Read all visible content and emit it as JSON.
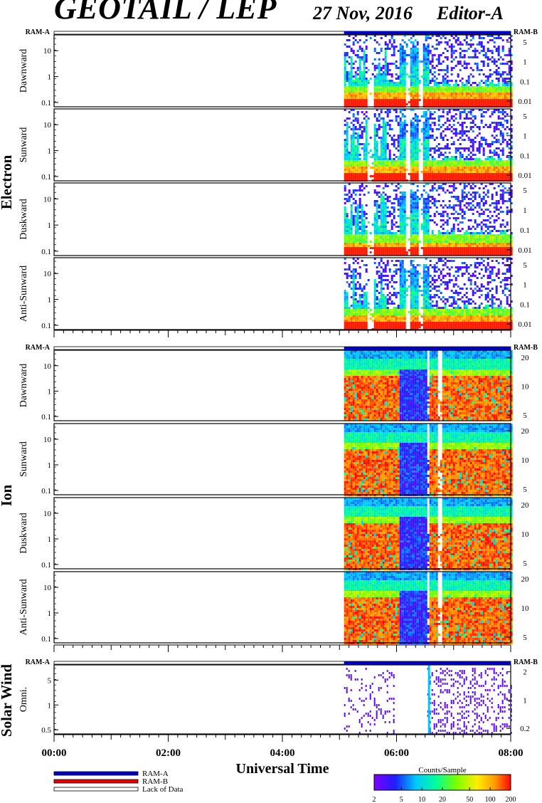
{
  "header": {
    "title": "GEOTAIL / LEP",
    "date": "27 Nov, 2016",
    "editor": "Editor-A"
  },
  "chart_data": {
    "type": "heatmap",
    "time_axis": {
      "label": "Universal Time",
      "ticks": [
        "00:00",
        "02:00",
        "04:00",
        "06:00",
        "08:00"
      ],
      "range_hours": [
        0,
        8
      ],
      "data_start_hour": 5.08
    },
    "ram_labels": {
      "left": "RAM-A",
      "right": "RAM-B"
    },
    "groups": [
      {
        "name": "Electron",
        "left_ticks": [
          "10",
          "1",
          "0.1"
        ],
        "right_ticks": [
          "5",
          "1",
          "0.1",
          "0.01"
        ],
        "panels": [
          {
            "label": "Dawnward"
          },
          {
            "label": "Sunward"
          },
          {
            "label": "Duskward"
          },
          {
            "label": "Anti-Sunward"
          }
        ]
      },
      {
        "name": "Ion",
        "left_ticks": [
          "10",
          "1",
          "0.1"
        ],
        "right_ticks": [
          "20",
          "10",
          "5"
        ],
        "panels": [
          {
            "label": "Dawnward"
          },
          {
            "label": "Sunward"
          },
          {
            "label": "Duskward"
          },
          {
            "label": "Anti-Sunward"
          }
        ]
      },
      {
        "name": "Solar Wind",
        "left_ticks": [
          "5",
          "1",
          "0.5"
        ],
        "right_ticks": [
          "2",
          "1",
          "0.2"
        ],
        "panels": [
          {
            "label": "Omni."
          }
        ]
      }
    ],
    "legend": {
      "items": [
        {
          "label": "RAM-A",
          "color": "#0000cc"
        },
        {
          "label": "RAM-B",
          "color": "#ee0000"
        },
        {
          "label": "Lack of Data",
          "color": "#ffffff"
        }
      ]
    },
    "colorbar": {
      "title": "Counts/Sample",
      "ticks": [
        "2",
        "5",
        "10",
        "20",
        "50",
        "100",
        "200"
      ],
      "scale": "log",
      "range": [
        2,
        200
      ]
    }
  }
}
